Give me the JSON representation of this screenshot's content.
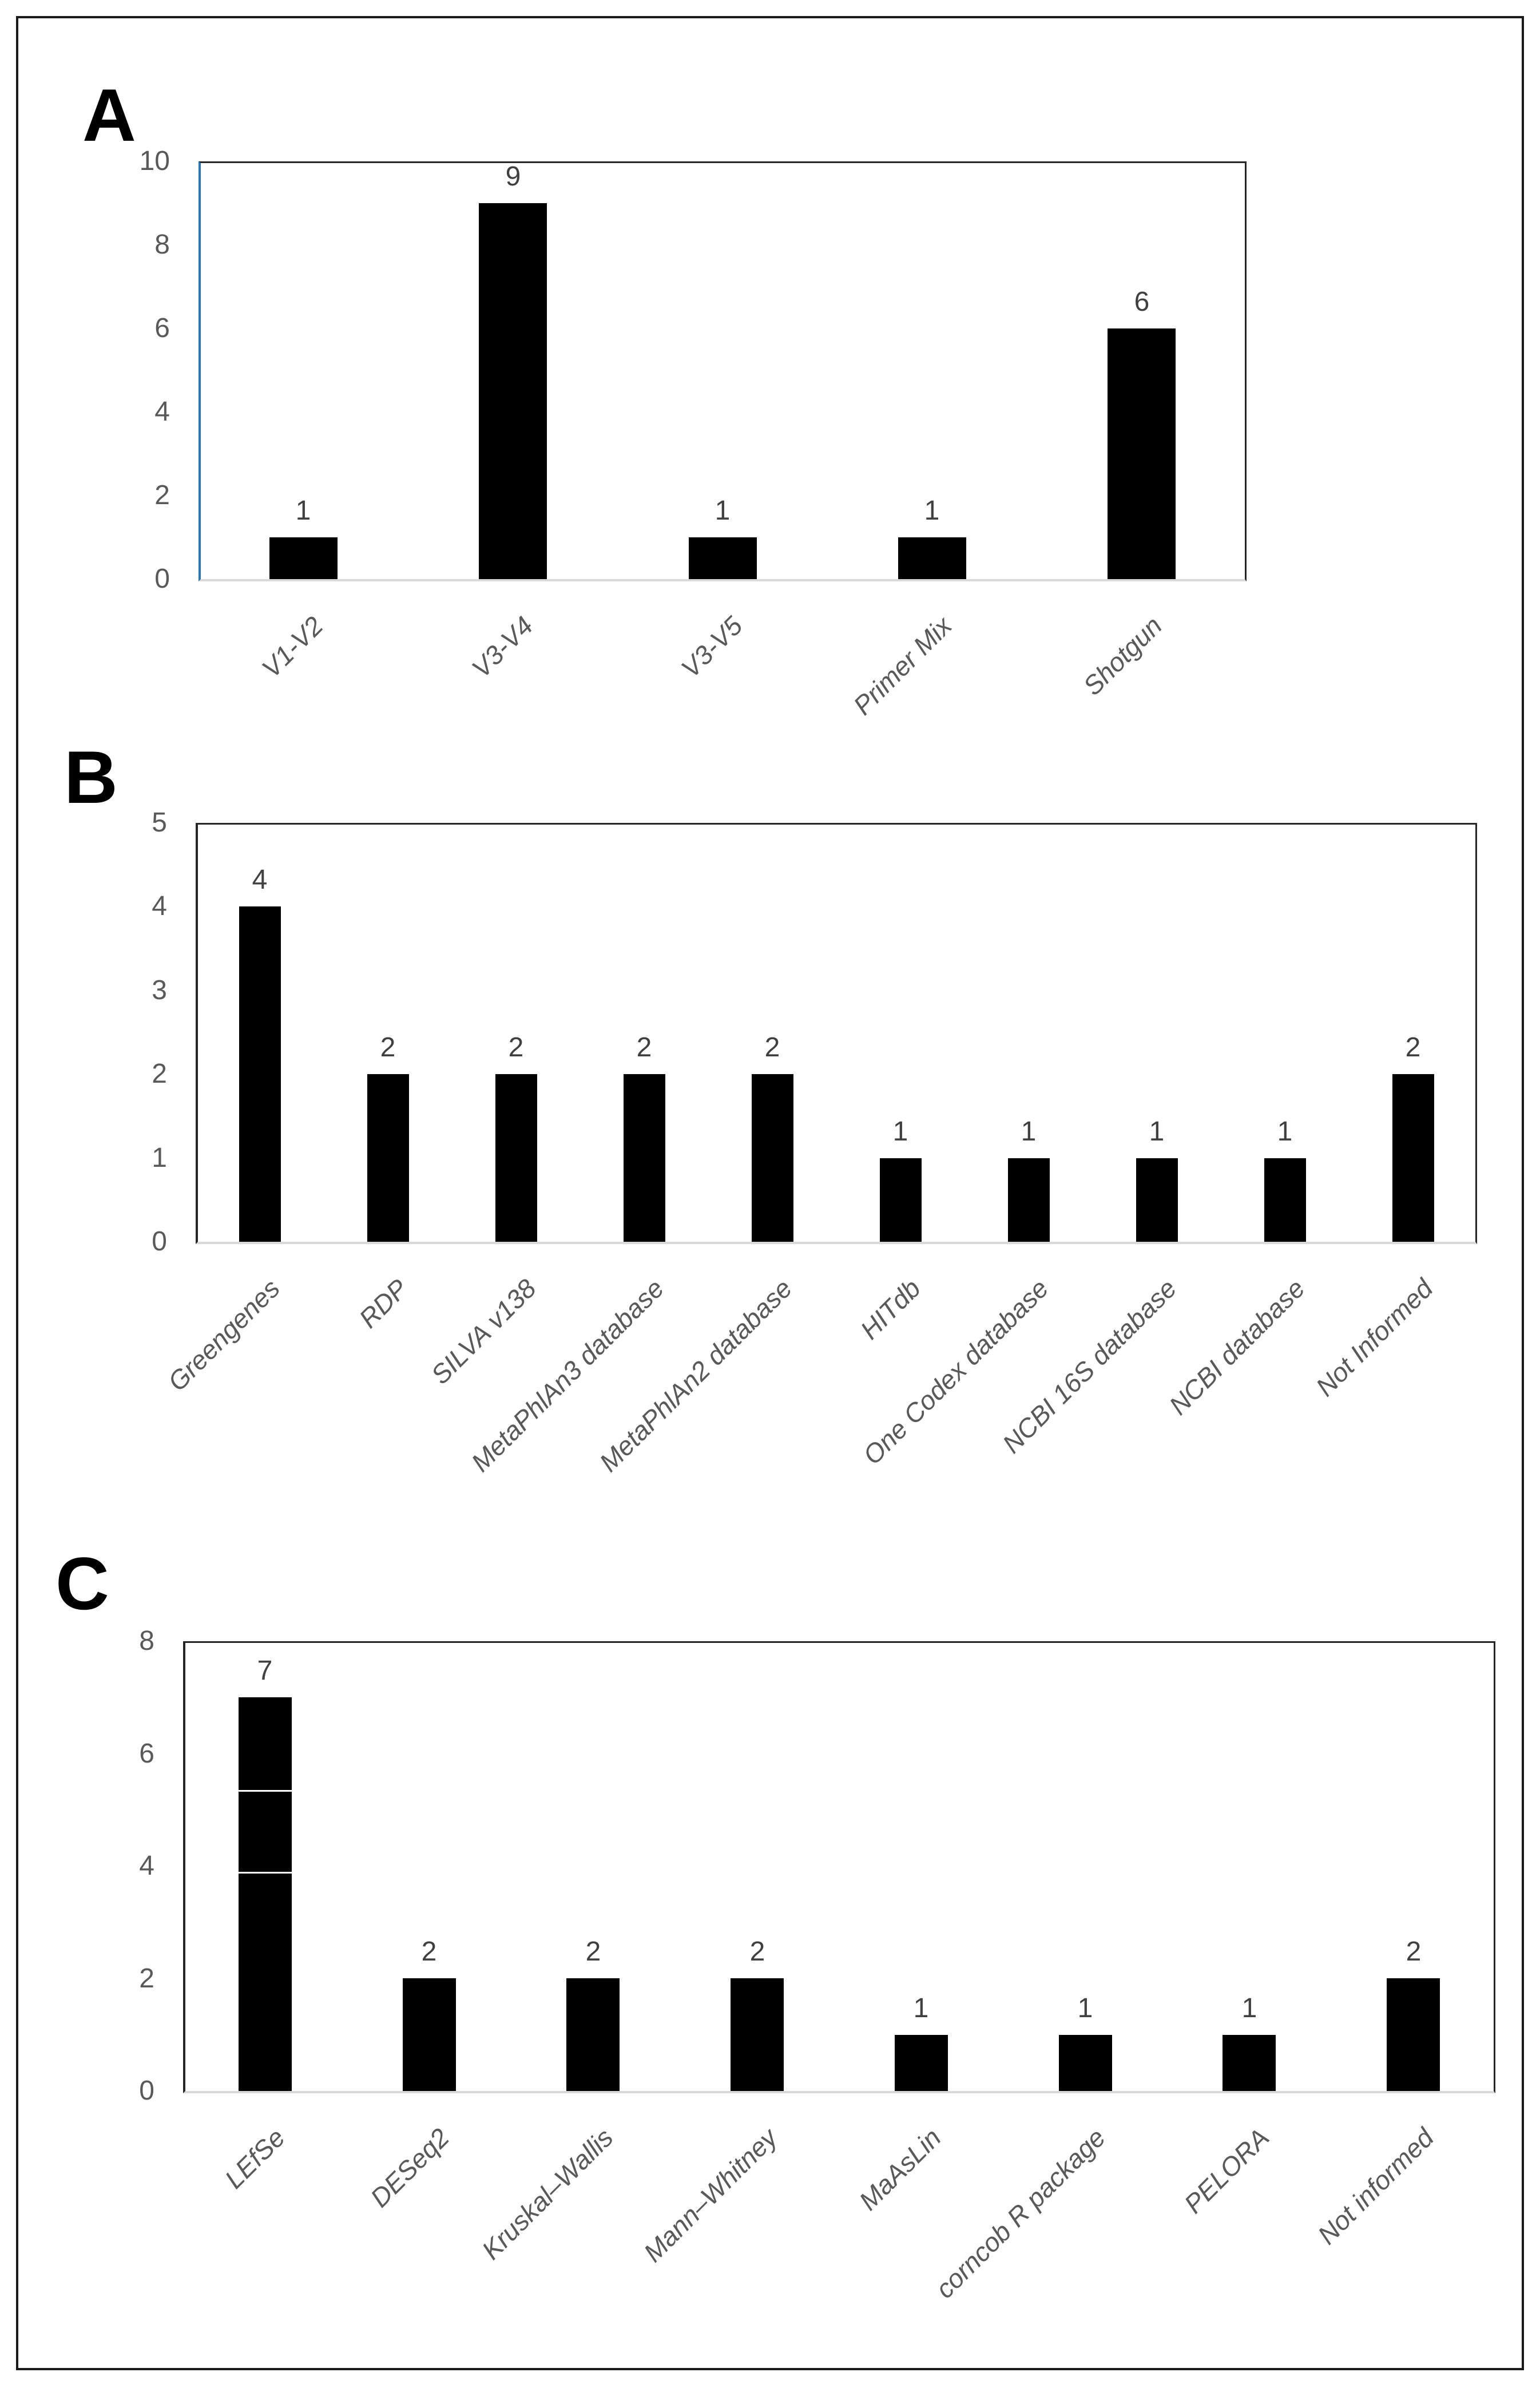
{
  "figure": {
    "background": "#ffffff",
    "border_color": "#1a1a1a"
  },
  "colors": {
    "bar": "#000000",
    "tick_label": "#595959",
    "value_label": "#404040",
    "category_label": "#595959",
    "plot_border": "#262626",
    "baseline": "#d9d9d9",
    "panel_a_left_axis": "#2e75b6",
    "segment_line": "#ffffff"
  },
  "panels": [
    {
      "label": "A"
    },
    {
      "label": "B"
    },
    {
      "label": "C"
    }
  ],
  "chart_data": [
    {
      "type": "bar",
      "panel": "A",
      "title": "",
      "xlabel": "",
      "ylabel": "",
      "categories": [
        "V1-V2",
        "V3-V4",
        "V3-V5",
        "Primer Mix",
        "Shotgun"
      ],
      "values": [
        1,
        9,
        1,
        1,
        6
      ],
      "data_labels": [
        "1",
        "9",
        "1",
        "1",
        "6"
      ],
      "ylim": [
        0,
        10
      ],
      "y_ticks": [
        10,
        8,
        6,
        4,
        2,
        0
      ],
      "grid": false,
      "legend": false
    },
    {
      "type": "bar",
      "panel": "B",
      "title": "",
      "xlabel": "",
      "ylabel": "",
      "categories": [
        "Greengenes",
        "RDP",
        "SILVA v138",
        "MetaPhlAn3 database",
        "MetaPhlAn2 database",
        "HITdb",
        "One Codex database",
        "NCBI 16S database",
        "NCBI database",
        "Not Informed"
      ],
      "values": [
        4,
        2,
        2,
        2,
        2,
        1,
        1,
        1,
        1,
        2
      ],
      "data_labels": [
        "4",
        "2",
        "2",
        "2",
        "2",
        "1",
        "1",
        "1",
        "1",
        "2"
      ],
      "ylim": [
        0,
        5
      ],
      "y_ticks": [
        5,
        4,
        3,
        2,
        1,
        0
      ],
      "grid": false,
      "legend": false
    },
    {
      "type": "bar",
      "panel": "C",
      "title": "",
      "xlabel": "",
      "ylabel": "",
      "categories": [
        "LEfSe",
        "DESeq2",
        "Kruskal–Wallis",
        "Mann–Whitney",
        "MaAsLin",
        "corncob R package",
        "PELORA",
        "Not informed"
      ],
      "values": [
        7,
        2,
        2,
        2,
        1,
        1,
        1,
        2
      ],
      "data_labels": [
        "7",
        "2",
        "2",
        "2",
        "1",
        "1",
        "1",
        "2"
      ],
      "ylim": [
        0,
        8
      ],
      "y_ticks": [
        8,
        6,
        4,
        2,
        0
      ],
      "grid": false,
      "legend": false,
      "first_bar_segment_breaks": [
        5.35,
        3.9
      ]
    }
  ]
}
